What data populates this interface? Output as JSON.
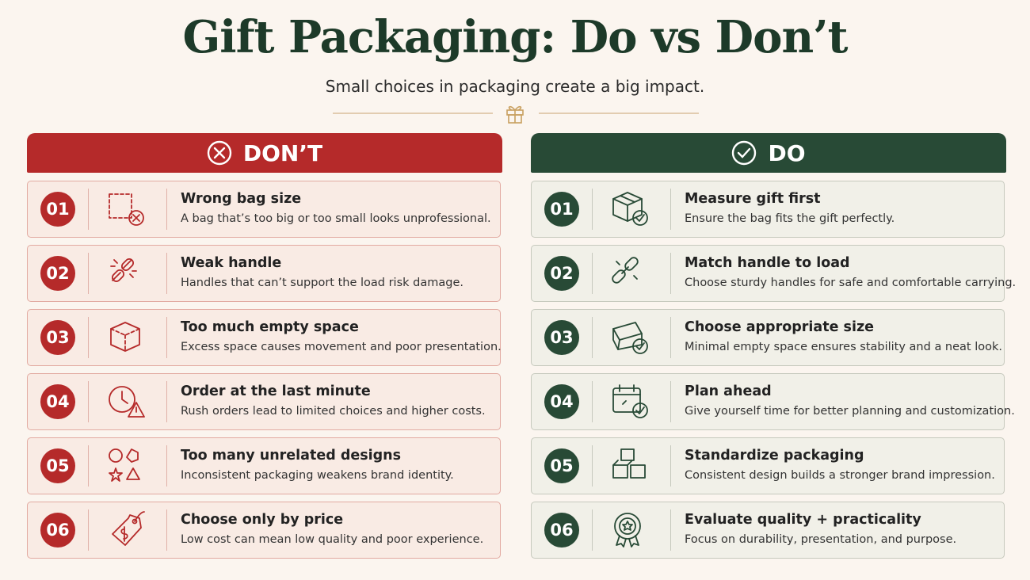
{
  "header": {
    "title": "Gift Packaging: Do vs Don’t",
    "subtitle": "Small choices in packaging create a big impact."
  },
  "columns": [
    {
      "label": "DON’T",
      "items": [
        {
          "number": "01",
          "title": "Wrong bag size",
          "text": "A bag that’s too big or too small looks unprofessional."
        },
        {
          "number": "02",
          "title": "Weak handle",
          "text": "Handles that can’t support the load risk damage."
        },
        {
          "number": "03",
          "title": "Too much empty space",
          "text": "Excess space causes movement and poor presentation."
        },
        {
          "number": "04",
          "title": "Order at the last minute",
          "text": "Rush orders lead to limited choices and higher costs."
        },
        {
          "number": "05",
          "title": "Too many unrelated designs",
          "text": "Inconsistent packaging weakens brand identity."
        },
        {
          "number": "06",
          "title": "Choose only by price",
          "text": "Low cost can mean low quality and poor experience."
        }
      ]
    },
    {
      "label": "DO",
      "items": [
        {
          "number": "01",
          "title": "Measure gift first",
          "text": "Ensure the bag fits the gift perfectly."
        },
        {
          "number": "02",
          "title": "Match handle to load",
          "text": "Choose sturdy handles for safe and comfortable carrying."
        },
        {
          "number": "03",
          "title": "Choose appropriate size",
          "text": "Minimal empty space ensures stability and a neat look."
        },
        {
          "number": "04",
          "title": "Plan ahead",
          "text": "Give yourself time for better planning and customization."
        },
        {
          "number": "05",
          "title": "Standardize packaging",
          "text": "Consistent design builds a stronger brand impression."
        },
        {
          "number": "06",
          "title": "Evaluate quality + practicality",
          "text": "Focus on durability, presentation, and purpose."
        }
      ]
    }
  ]
}
